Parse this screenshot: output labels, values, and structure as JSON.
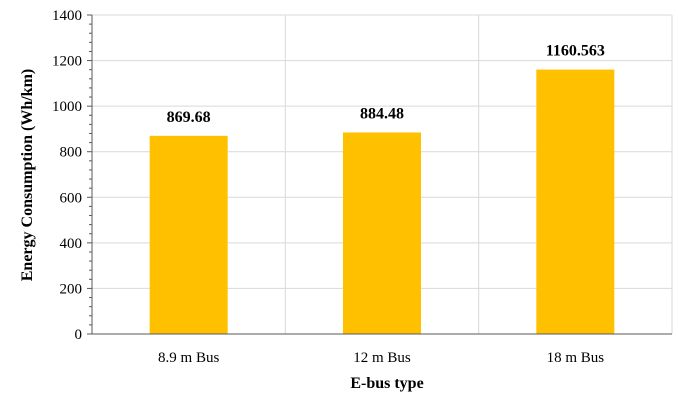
{
  "chart_data": {
    "type": "bar",
    "categories": [
      "8.9 m Bus",
      "12 m Bus",
      "18 m Bus"
    ],
    "values": [
      869.68,
      884.48,
      1160.563
    ],
    "data_labels": [
      "869.68",
      "884.48",
      "1160.563"
    ],
    "title": "",
    "xlabel": "E-bus type",
    "ylabel": "Energy  Consumption (Wh/km)",
    "ylim": [
      0,
      1400
    ],
    "yticks": [
      0,
      200,
      400,
      600,
      800,
      1000,
      1200,
      1400
    ],
    "grid": true,
    "legend": "none",
    "bar_color": "#FFC000",
    "grid_color": "#D9D9D9"
  }
}
